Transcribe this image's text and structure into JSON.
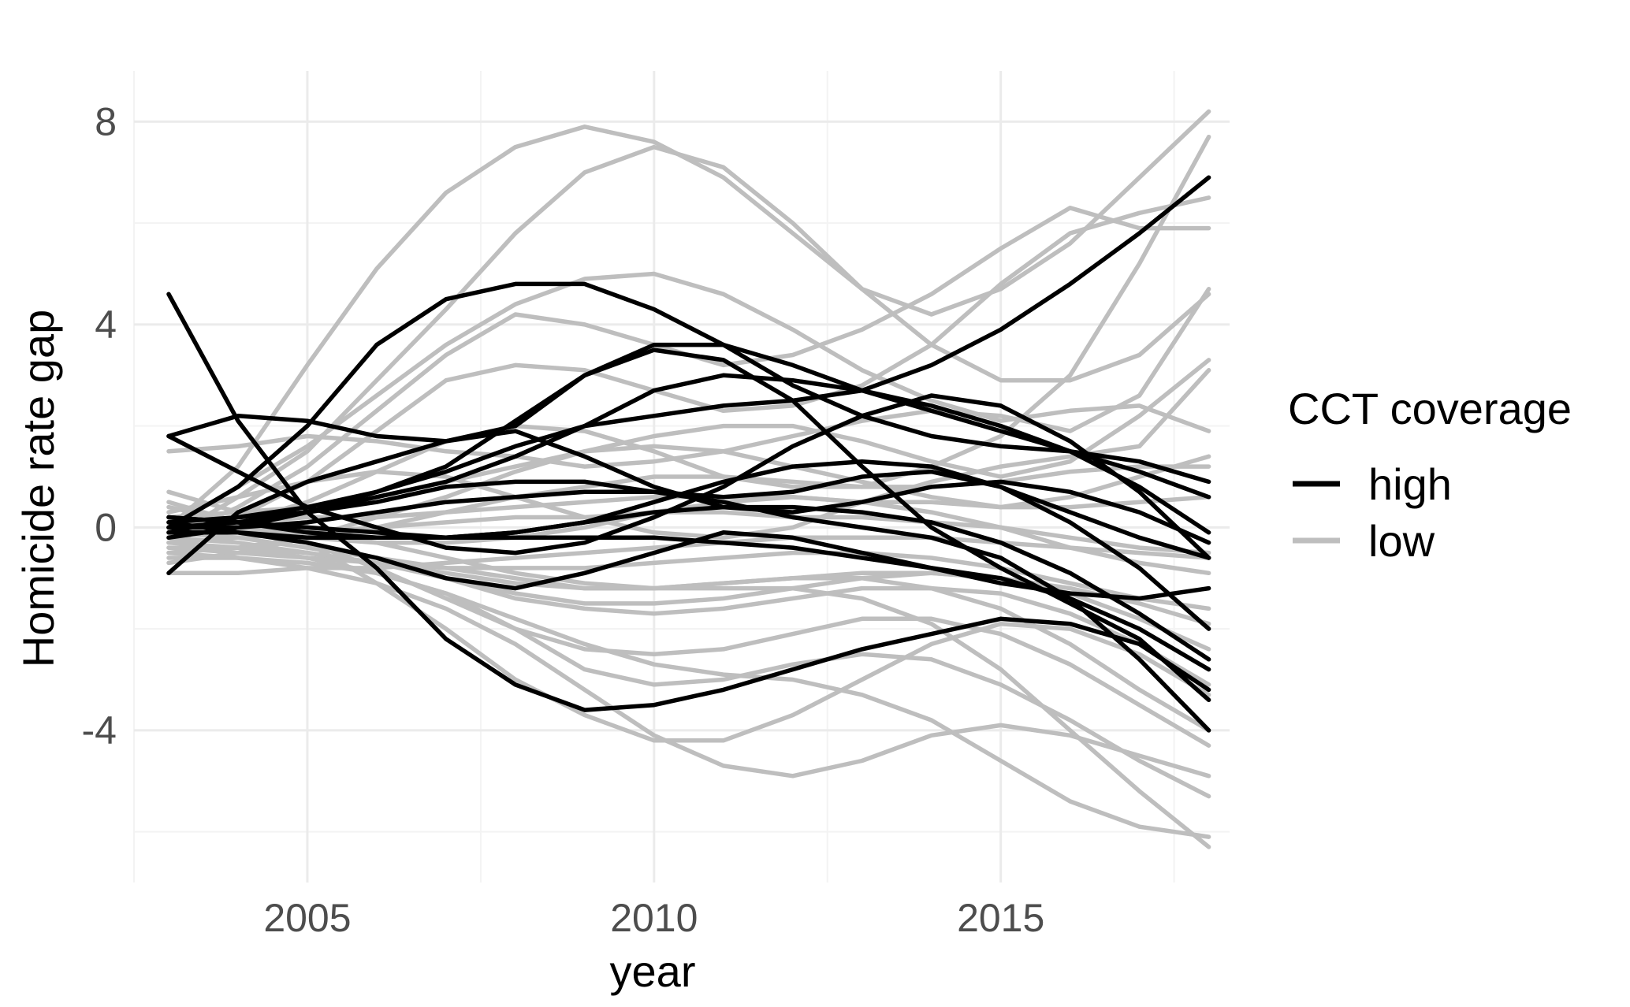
{
  "chart_data": {
    "type": "line",
    "xlabel": "year",
    "ylabel": "Homicide rate gap",
    "xlim": [
      2002.5,
      2018.3
    ],
    "ylim": [
      -7.0,
      9.0
    ],
    "x_ticks": [
      2005,
      2010,
      2015
    ],
    "y_ticks": [
      -4,
      0,
      4,
      8
    ],
    "x_tick_labels": [
      "2005",
      "2010",
      "2015"
    ],
    "y_tick_labels": [
      "-4",
      "0",
      "4",
      "8"
    ],
    "grid": true,
    "legend": {
      "title": "CCT coverage",
      "position": "right",
      "entries": [
        {
          "label": "high",
          "color": "#000000"
        },
        {
          "label": "low",
          "color": "#bebebe"
        }
      ]
    },
    "colors": {
      "high": "#000000",
      "low": "#bebebe"
    },
    "x": [
      2003,
      2004,
      2005,
      2006,
      2007,
      2008,
      2009,
      2010,
      2011,
      2012,
      2013,
      2014,
      2015,
      2016,
      2017,
      2018
    ],
    "series": [
      {
        "group": "low",
        "values": [
          0.0,
          1.2,
          3.2,
          5.1,
          6.6,
          7.5,
          7.9,
          7.6,
          6.9,
          5.8,
          4.7,
          4.2,
          4.7,
          5.6,
          6.9,
          8.2
        ]
      },
      {
        "group": "low",
        "values": [
          -0.2,
          0.6,
          1.5,
          2.9,
          4.3,
          5.8,
          7.0,
          7.5,
          7.1,
          6.0,
          4.7,
          3.6,
          2.9,
          2.9,
          3.4,
          4.6
        ]
      },
      {
        "group": "low",
        "values": [
          0.0,
          0.8,
          1.6,
          2.6,
          3.6,
          4.4,
          4.9,
          5.0,
          4.6,
          3.9,
          3.1,
          2.5,
          2.1,
          2.3,
          2.4,
          1.9
        ]
      },
      {
        "group": "low",
        "values": [
          -0.2,
          0.4,
          1.2,
          2.3,
          3.4,
          4.2,
          4.0,
          3.6,
          3.2,
          3.4,
          3.9,
          4.6,
          5.5,
          6.3,
          5.9,
          5.9
        ]
      },
      {
        "group": "low",
        "values": [
          -0.3,
          0.2,
          0.9,
          1.9,
          2.9,
          3.2,
          3.1,
          2.7,
          2.3,
          2.4,
          2.8,
          3.6,
          4.8,
          5.8,
          6.2,
          6.5
        ]
      },
      {
        "group": "low",
        "values": [
          1.5,
          1.6,
          1.8,
          1.7,
          1.5,
          1.4,
          1.2,
          1.3,
          1.5,
          1.8,
          2.1,
          2.3,
          2.2,
          1.9,
          2.6,
          4.7
        ]
      },
      {
        "group": "low",
        "values": [
          0.5,
          0.1,
          0.5,
          1.1,
          1.7,
          2.0,
          1.9,
          1.5,
          1.0,
          0.8,
          0.8,
          1.2,
          1.8,
          3.0,
          5.2,
          7.7
        ]
      },
      {
        "group": "low",
        "values": [
          0.3,
          0.6,
          0.9,
          1.1,
          1.0,
          0.6,
          0.2,
          -0.1,
          -0.2,
          0.0,
          0.5,
          0.9,
          1.2,
          1.4,
          1.6,
          3.1
        ]
      },
      {
        "group": "low",
        "values": [
          -0.7,
          -0.5,
          -0.2,
          0.2,
          0.6,
          1.1,
          1.5,
          1.8,
          2.0,
          2.0,
          1.7,
          1.3,
          1.0,
          1.3,
          2.2,
          3.3
        ]
      },
      {
        "group": "low",
        "values": [
          0.2,
          0.3,
          0.4,
          0.6,
          0.9,
          1.2,
          1.5,
          1.6,
          1.5,
          1.2,
          0.9,
          0.6,
          0.4,
          0.6,
          1.0,
          1.4
        ]
      },
      {
        "group": "low",
        "values": [
          -0.5,
          -0.4,
          -0.2,
          0.0,
          0.3,
          0.6,
          0.8,
          1.0,
          1.0,
          0.9,
          0.8,
          0.8,
          0.9,
          1.1,
          1.2,
          1.2
        ]
      },
      {
        "group": "low",
        "values": [
          0.1,
          0.1,
          0.2,
          0.2,
          0.3,
          0.4,
          0.5,
          0.6,
          0.6,
          0.6,
          0.5,
          0.5,
          0.4,
          0.4,
          0.5,
          0.6
        ]
      },
      {
        "group": "low",
        "values": [
          -0.3,
          -0.2,
          -0.1,
          0.0,
          0.1,
          0.2,
          0.2,
          0.3,
          0.3,
          0.2,
          0.2,
          0.1,
          0.0,
          -0.2,
          -0.4,
          -0.5
        ]
      },
      {
        "group": "low",
        "values": [
          0.0,
          -0.1,
          -0.2,
          -0.3,
          -0.3,
          -0.2,
          0.0,
          0.3,
          0.5,
          0.6,
          0.5,
          0.3,
          0.0,
          -0.4,
          -0.7,
          -0.9
        ]
      },
      {
        "group": "low",
        "values": [
          -0.9,
          -0.9,
          -0.8,
          -0.8,
          -0.7,
          -0.6,
          -0.5,
          -0.4,
          -0.3,
          -0.2,
          -0.2,
          -0.2,
          -0.3,
          -0.4,
          -0.5,
          -0.6
        ]
      },
      {
        "group": "low",
        "values": [
          -0.4,
          -0.5,
          -0.6,
          -0.7,
          -0.8,
          -0.8,
          -0.8,
          -0.7,
          -0.6,
          -0.5,
          -0.5,
          -0.6,
          -0.8,
          -1.1,
          -1.4,
          -1.6
        ]
      },
      {
        "group": "low",
        "values": [
          -0.2,
          -0.3,
          -0.5,
          -0.7,
          -0.9,
          -1.1,
          -1.2,
          -1.2,
          -1.1,
          -1.0,
          -0.9,
          -0.9,
          -1.0,
          -1.2,
          -1.5,
          -1.9
        ]
      },
      {
        "group": "low",
        "values": [
          0.2,
          0.0,
          -0.3,
          -0.6,
          -1.0,
          -1.3,
          -1.5,
          -1.5,
          -1.4,
          -1.2,
          -1.0,
          -0.9,
          -1.0,
          -1.3,
          -1.8,
          -2.4
        ]
      },
      {
        "group": "low",
        "values": [
          -0.4,
          -0.4,
          -0.5,
          -0.7,
          -1.0,
          -1.4,
          -1.6,
          -1.7,
          -1.6,
          -1.4,
          -1.2,
          -1.2,
          -1.3,
          -1.7,
          -2.3,
          -3.1
        ]
      },
      {
        "group": "low",
        "values": [
          0.4,
          0.1,
          -0.3,
          -0.8,
          -1.4,
          -2.0,
          -2.4,
          -2.5,
          -2.4,
          -2.1,
          -1.8,
          -1.8,
          -2.1,
          -2.7,
          -3.5,
          -4.3
        ]
      },
      {
        "group": "low",
        "values": [
          -0.5,
          -0.6,
          -0.8,
          -1.1,
          -1.6,
          -2.3,
          -3.2,
          -4.1,
          -4.7,
          -4.9,
          -4.6,
          -4.1,
          -3.9,
          -4.1,
          -4.5,
          -4.9
        ]
      },
      {
        "group": "low",
        "values": [
          -0.6,
          -0.6,
          -0.7,
          -0.9,
          -1.3,
          -2.0,
          -2.8,
          -3.1,
          -3.0,
          -2.7,
          -2.5,
          -2.6,
          -3.1,
          -3.8,
          -4.6,
          -5.3
        ]
      },
      {
        "group": "low",
        "values": [
          0.7,
          0.3,
          -0.3,
          -1.1,
          -2.0,
          -3.0,
          -3.7,
          -4.2,
          -4.2,
          -3.7,
          -3.0,
          -2.3,
          -1.9,
          -2.0,
          -2.5,
          -3.3
        ]
      },
      {
        "group": "low",
        "values": [
          -0.3,
          -0.4,
          -0.6,
          -0.9,
          -1.3,
          -1.8,
          -2.3,
          -2.7,
          -2.9,
          -3.0,
          -3.3,
          -3.8,
          -4.6,
          -5.4,
          -5.9,
          -6.1
        ]
      },
      {
        "group": "low",
        "values": [
          0.1,
          0.0,
          -0.1,
          -0.3,
          -0.6,
          -0.9,
          -1.1,
          -1.2,
          -1.2,
          -1.2,
          -1.4,
          -1.9,
          -2.8,
          -4.0,
          -5.2,
          -6.3
        ]
      },
      {
        "group": "low",
        "values": [
          -0.1,
          -0.2,
          -0.4,
          -0.6,
          -0.8,
          -1.0,
          -1.2,
          -1.2,
          -1.1,
          -1.0,
          -1.0,
          -1.2,
          -1.6,
          -2.3,
          -3.2,
          -4.0
        ]
      },
      {
        "group": "high",
        "values": [
          0.0,
          0.8,
          2.0,
          3.6,
          4.5,
          4.8,
          4.8,
          4.3,
          3.6,
          2.8,
          2.2,
          1.8,
          1.6,
          1.5,
          1.3,
          0.9
        ]
      },
      {
        "group": "high",
        "values": [
          1.8,
          2.2,
          2.1,
          1.8,
          1.7,
          2.0,
          3.0,
          3.5,
          3.3,
          2.5,
          1.2,
          0.0,
          -0.8,
          -1.5,
          -2.2,
          -3.4
        ]
      },
      {
        "group": "high",
        "values": [
          4.6,
          2.1,
          0.3,
          -0.8,
          -2.2,
          -3.1,
          -3.6,
          -3.5,
          -3.2,
          -2.8,
          -2.4,
          -2.1,
          -1.8,
          -1.9,
          -2.3,
          -3.2
        ]
      },
      {
        "group": "high",
        "values": [
          1.8,
          1.1,
          0.4,
          0.0,
          -0.4,
          -0.5,
          -0.3,
          0.2,
          0.8,
          1.6,
          2.2,
          2.6,
          2.4,
          1.7,
          0.7,
          -0.6
        ]
      },
      {
        "group": "high",
        "values": [
          -0.9,
          0.3,
          0.9,
          1.3,
          1.7,
          1.9,
          1.4,
          0.8,
          0.4,
          0.3,
          0.5,
          0.8,
          0.9,
          0.7,
          0.3,
          -0.3
        ]
      },
      {
        "group": "high",
        "values": [
          0.1,
          0.2,
          0.4,
          0.7,
          1.2,
          2.1,
          3.0,
          3.6,
          3.6,
          3.2,
          2.7,
          2.3,
          1.9,
          1.5,
          1.1,
          0.6
        ]
      },
      {
        "group": "high",
        "values": [
          -0.1,
          0.2,
          0.3,
          0.6,
          0.9,
          1.4,
          2.0,
          2.7,
          3.0,
          2.9,
          2.7,
          2.4,
          2.0,
          1.5,
          0.8,
          -0.1
        ]
      },
      {
        "group": "high",
        "values": [
          0.0,
          0.1,
          0.3,
          0.7,
          1.1,
          1.6,
          2.0,
          2.2,
          2.4,
          2.5,
          2.7,
          3.2,
          3.9,
          4.8,
          5.8,
          6.9
        ]
      },
      {
        "group": "high",
        "values": [
          -0.2,
          0.0,
          0.3,
          0.5,
          0.8,
          0.9,
          0.9,
          0.7,
          0.6,
          0.7,
          1.0,
          1.1,
          0.8,
          0.3,
          -0.2,
          -0.6
        ]
      },
      {
        "group": "high",
        "values": [
          0.2,
          0.1,
          -0.1,
          -0.2,
          -0.2,
          -0.1,
          0.1,
          0.5,
          0.9,
          1.2,
          1.3,
          1.2,
          0.8,
          0.1,
          -0.8,
          -2.0
        ]
      },
      {
        "group": "high",
        "values": [
          0.1,
          -0.1,
          -0.3,
          -0.6,
          -1.0,
          -1.2,
          -0.9,
          -0.5,
          -0.1,
          -0.2,
          -0.5,
          -0.8,
          -1.1,
          -1.3,
          -1.4,
          -1.2
        ]
      },
      {
        "group": "high",
        "values": [
          0.0,
          0.0,
          0.1,
          0.3,
          0.5,
          0.6,
          0.7,
          0.7,
          0.5,
          0.2,
          0.0,
          -0.2,
          -0.6,
          -1.4,
          -2.6,
          -4.0
        ]
      },
      {
        "group": "high",
        "values": [
          0.2,
          0.1,
          0.0,
          -0.1,
          -0.2,
          -0.2,
          -0.2,
          -0.2,
          -0.3,
          -0.4,
          -0.6,
          -0.8,
          -1.0,
          -1.4,
          -2.0,
          -2.8
        ]
      },
      {
        "group": "high",
        "values": [
          -0.1,
          -0.1,
          -0.2,
          -0.2,
          -0.2,
          -0.1,
          0.1,
          0.3,
          0.4,
          0.4,
          0.3,
          0.1,
          -0.3,
          -0.9,
          -1.7,
          -2.6
        ]
      }
    ]
  }
}
